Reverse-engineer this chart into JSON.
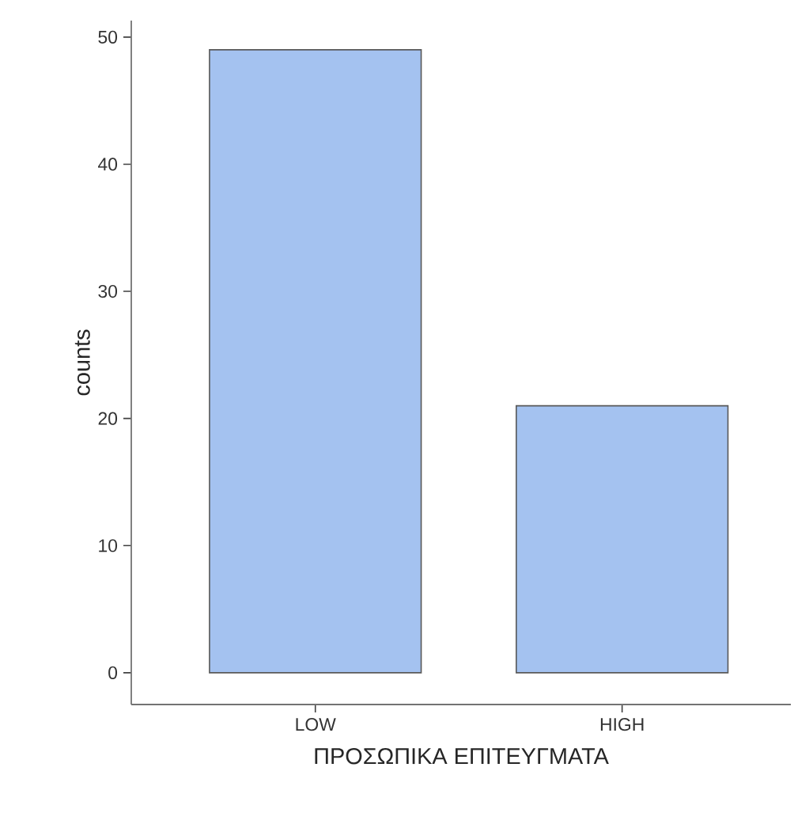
{
  "chart_data": {
    "type": "bar",
    "xlabel": "ΠΡΟΣΩΠΙΚΑ ΕΠΙΤΕΥΓΜΑΤΑ",
    "ylabel": "counts",
    "categories": [
      "LOW",
      "HIGH"
    ],
    "values": [
      49,
      21
    ],
    "color": "#a4c2f0",
    "ylim": [
      -2.5,
      51.3
    ],
    "yticks": [
      0,
      10,
      20,
      30,
      40,
      50
    ],
    "grid": false
  }
}
